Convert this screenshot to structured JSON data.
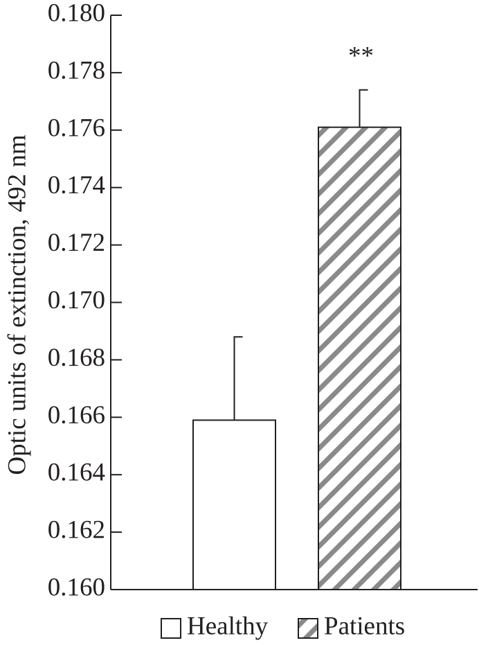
{
  "chart_data": {
    "type": "bar",
    "y_label": "Optic units of extinction, 492 nm",
    "ylim": [
      0.16,
      0.18
    ],
    "yticks": [
      {
        "value": 0.16,
        "label": "0.160"
      },
      0.162,
      0.164,
      0.166,
      0.168,
      {
        "value": 0.17,
        "label": "0.170"
      },
      0.172,
      0.174,
      0.176,
      0.178,
      {
        "value": 0.18,
        "label": "0.180"
      }
    ],
    "series": [
      {
        "name": "Healthy",
        "color": "#ffffff",
        "values": [
          0.1659
        ],
        "errors": [
          0.0029
        ]
      },
      {
        "name": "Patients",
        "color": "#ffffff",
        "pattern": "hatch",
        "hatch_color": "#8a8a8a",
        "values": [
          0.1761
        ],
        "errors": [
          0.0013
        ],
        "annotation": "**"
      }
    ],
    "legend": "bottom"
  }
}
